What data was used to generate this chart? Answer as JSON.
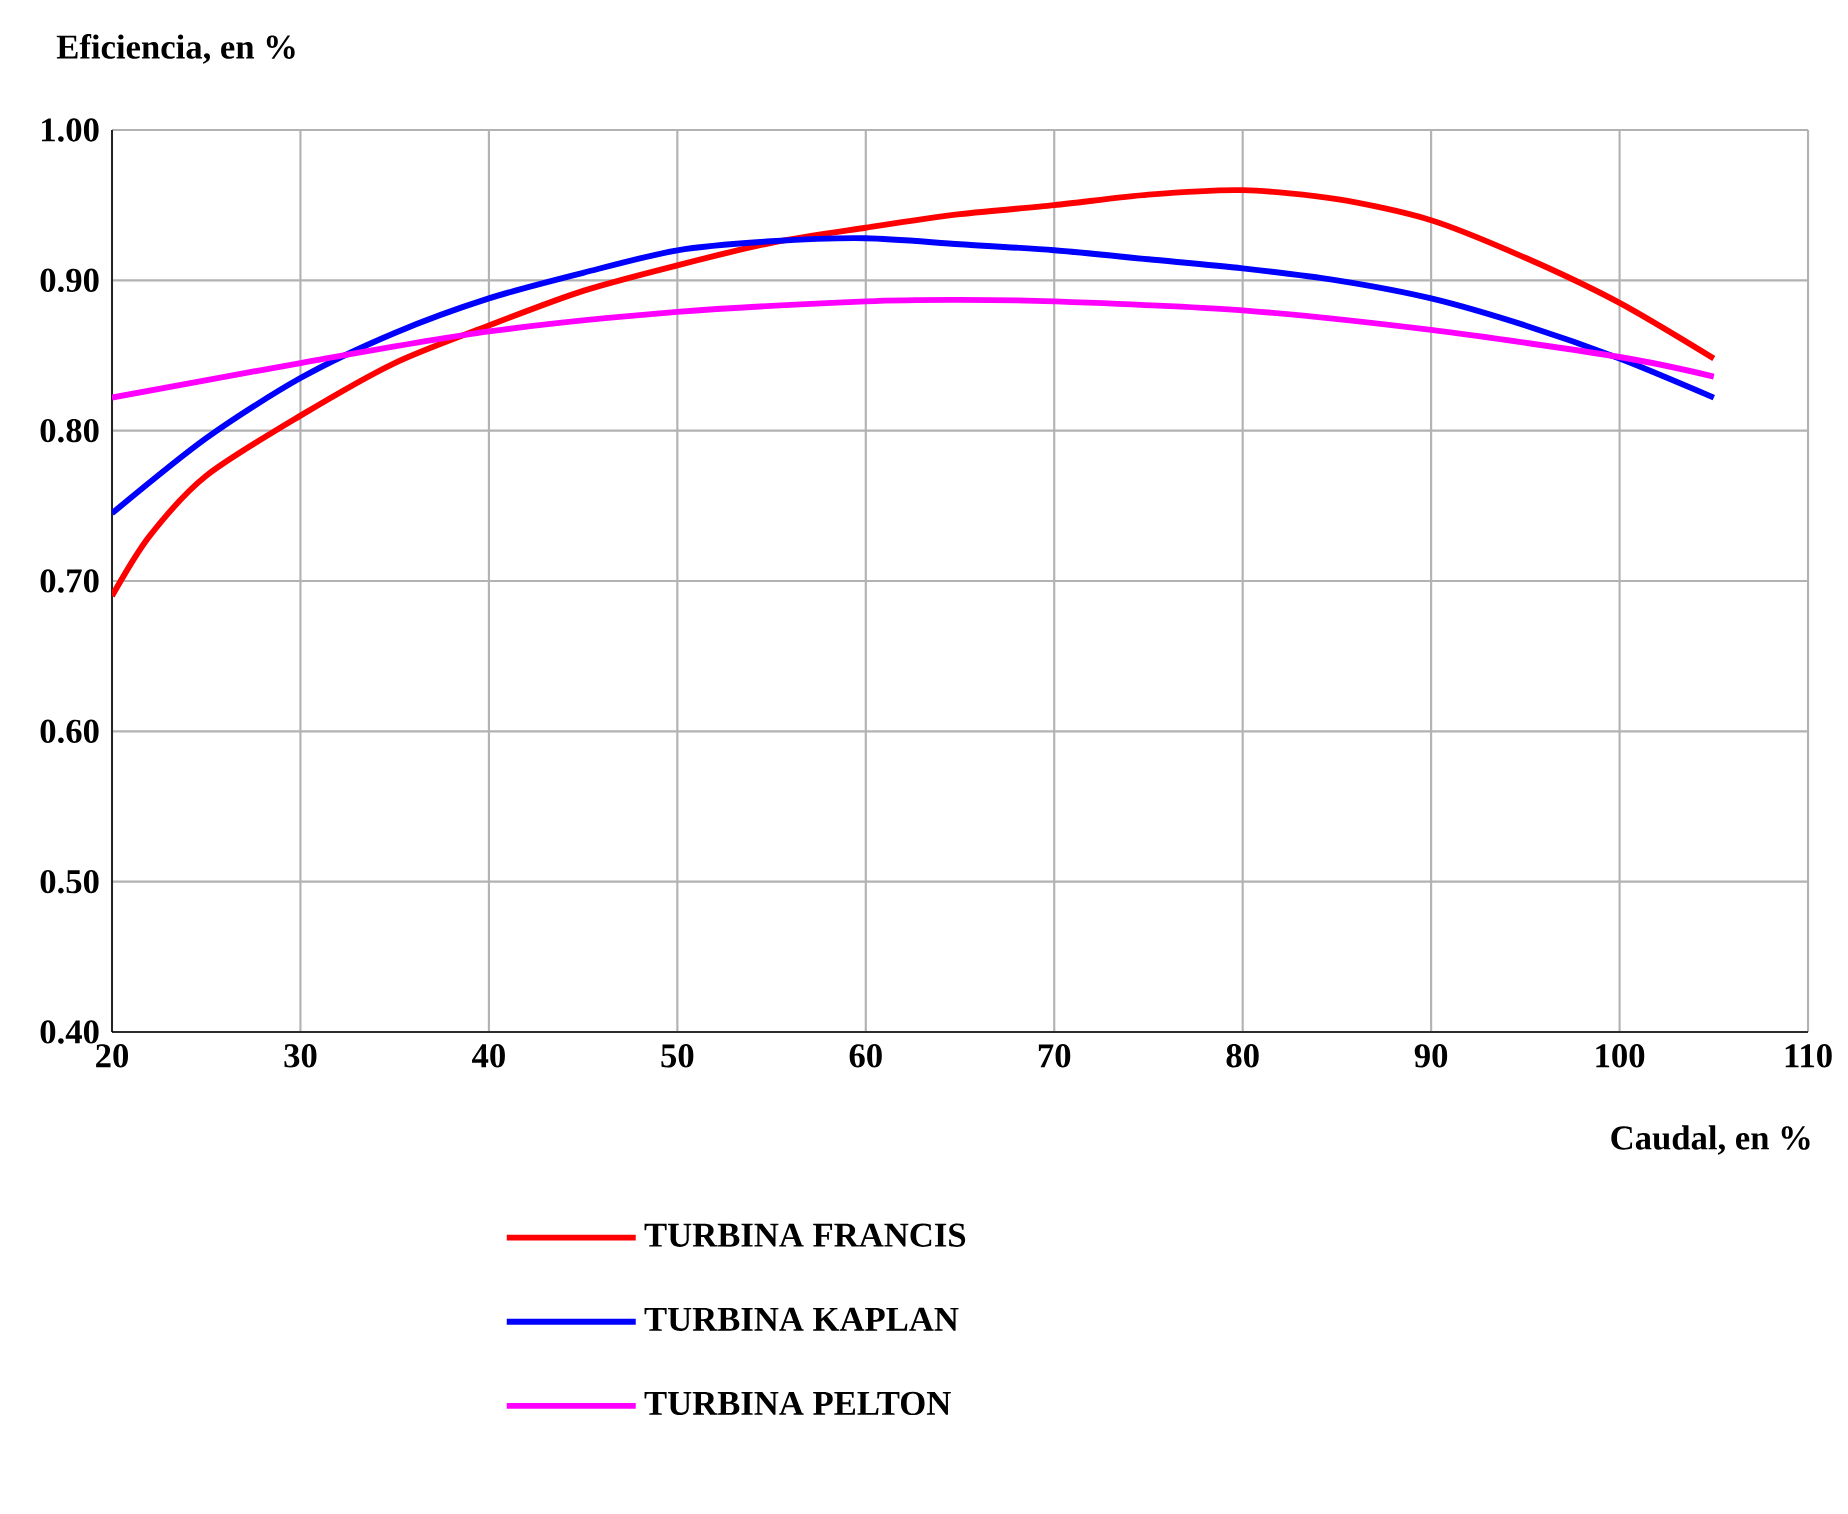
{
  "chart_data": {
    "type": "line",
    "xlabel": "Caudal, en %",
    "ylabel": "Eficiencia, en %",
    "xlim": [
      20,
      110
    ],
    "xticks": [
      20,
      30,
      40,
      50,
      60,
      70,
      80,
      90,
      100,
      110
    ],
    "ylim": [
      0.4,
      1.0
    ],
    "yticks": [
      {
        "value": 0.4,
        "label": "0.40"
      },
      {
        "value": 0.5,
        "label": "0.50"
      },
      {
        "value": 0.6,
        "label": "0.60"
      },
      {
        "value": 0.7,
        "label": "0.70"
      },
      {
        "value": 0.8,
        "label": "0.80"
      },
      {
        "value": 0.9,
        "label": "0.90"
      },
      {
        "value": 1.0,
        "label": "1.00"
      }
    ],
    "grid": true,
    "legend": "bottom",
    "marker": "none",
    "line_style": "solid",
    "series": [
      {
        "name": "TURBINA FRANCIS",
        "color": "#ff0000",
        "x": [
          20,
          22,
          25,
          30,
          35,
          40,
          45,
          50,
          55,
          60,
          65,
          70,
          75,
          80,
          85,
          90,
          95,
          100,
          105
        ],
        "values": [
          0.69,
          0.73,
          0.77,
          0.81,
          0.845,
          0.87,
          0.893,
          0.91,
          0.925,
          0.935,
          0.944,
          0.95,
          0.957,
          0.96,
          0.954,
          0.94,
          0.915,
          0.885,
          0.848
        ]
      },
      {
        "name": "TURBINA KAPLAN",
        "color": "#0000ff",
        "x": [
          20,
          25,
          30,
          35,
          40,
          45,
          50,
          55,
          60,
          65,
          70,
          75,
          80,
          85,
          90,
          95,
          100,
          105
        ],
        "values": [
          0.745,
          0.795,
          0.835,
          0.865,
          0.888,
          0.905,
          0.92,
          0.926,
          0.928,
          0.924,
          0.92,
          0.914,
          0.908,
          0.9,
          0.888,
          0.87,
          0.848,
          0.822
        ]
      },
      {
        "name": "TURBINA PELTON",
        "color": "#ff00ff",
        "x": [
          20,
          30,
          40,
          50,
          60,
          65,
          70,
          80,
          90,
          100,
          105
        ],
        "values": [
          0.822,
          0.845,
          0.866,
          0.879,
          0.886,
          0.887,
          0.886,
          0.88,
          0.867,
          0.849,
          0.836
        ]
      }
    ]
  }
}
